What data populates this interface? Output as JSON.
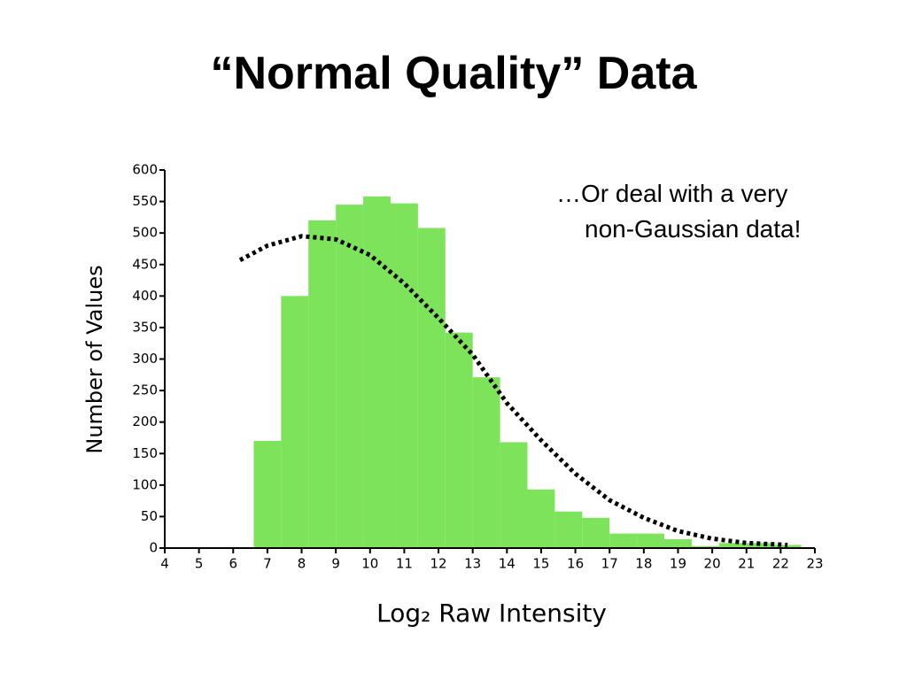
{
  "chart_data": {
    "type": "histogram",
    "title": "“Normal Quality” Data",
    "annotation": [
      "…Or deal with a very",
      "non-Gaussian data!"
    ],
    "xlabel": "Log₂ Raw Intensity",
    "ylabel": "Number of Values",
    "bins": [
      6.6,
      7.4,
      8.2,
      9.0,
      9.8,
      10.6,
      11.4,
      12.2,
      13.0,
      13.8,
      14.6,
      15.4,
      16.2,
      17.0,
      17.8,
      18.6,
      19.4,
      20.2,
      21.0,
      21.8,
      22.6
    ],
    "values": [
      170,
      400,
      520,
      545,
      558,
      547,
      508,
      342,
      271,
      168,
      93,
      58,
      48,
      23,
      23,
      14,
      3,
      8,
      8,
      5
    ],
    "color": "#7de35a",
    "curve": {
      "x": [
        6.2,
        7,
        8,
        9,
        10,
        11,
        12,
        13,
        14,
        15,
        16,
        17,
        18,
        19,
        20,
        21,
        22.2
      ],
      "values": [
        457,
        480,
        495,
        490,
        465,
        420,
        365,
        307,
        230,
        171,
        118,
        76,
        48,
        27,
        15,
        8,
        5
      ],
      "color": "#000000"
    },
    "xlim": [
      4,
      23
    ],
    "xticks": [
      4,
      5,
      6,
      7,
      8,
      9,
      10,
      11,
      12,
      13,
      14,
      15,
      16,
      17,
      18,
      19,
      20,
      21,
      22,
      23
    ],
    "ylim": [
      0,
      600
    ],
    "yticks": [
      0,
      50,
      100,
      150,
      200,
      250,
      300,
      350,
      400,
      450,
      500,
      550,
      600
    ]
  }
}
